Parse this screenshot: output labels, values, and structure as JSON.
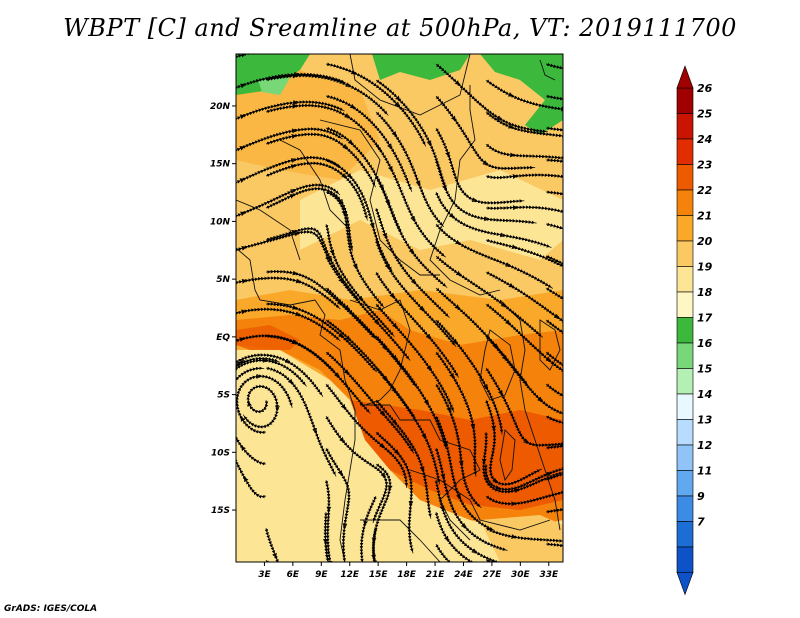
{
  "title": "WBPT [C] and Sreamline at 500hPa, VT: 2019111700",
  "footer": "GrADS: IGES/COLA",
  "map": {
    "lon_range": [
      0,
      34.5
    ],
    "lat_range": [
      -19.5,
      24.5
    ],
    "x_ticks": [
      {
        "value": 3,
        "label": "3E"
      },
      {
        "value": 6,
        "label": "6E"
      },
      {
        "value": 9,
        "label": "9E"
      },
      {
        "value": 12,
        "label": "12E"
      },
      {
        "value": 15,
        "label": "15E"
      },
      {
        "value": 18,
        "label": "18E"
      },
      {
        "value": 21,
        "label": "21E"
      },
      {
        "value": 24,
        "label": "24E"
      },
      {
        "value": 27,
        "label": "27E"
      },
      {
        "value": 30,
        "label": "30E"
      },
      {
        "value": 33,
        "label": "33E"
      }
    ],
    "y_ticks": [
      {
        "value": 20,
        "label": "20N"
      },
      {
        "value": 15,
        "label": "15N"
      },
      {
        "value": 10,
        "label": "10N"
      },
      {
        "value": 5,
        "label": "5N"
      },
      {
        "value": 0,
        "label": "EQ"
      },
      {
        "value": -5,
        "label": "5S"
      },
      {
        "value": -10,
        "label": "10S"
      },
      {
        "value": -15,
        "label": "15S"
      }
    ]
  },
  "colorbar": {
    "labels": [
      "26",
      "25",
      "24",
      "23",
      "22",
      "21",
      "20",
      "19",
      "18",
      "17",
      "16",
      "15",
      "14",
      "13",
      "12",
      "11",
      "9",
      "7"
    ],
    "colors": [
      "#a00000",
      "#c81400",
      "#e12d00",
      "#ee5a00",
      "#f5820a",
      "#f9a82a",
      "#fac963",
      "#fde596",
      "#fef7c4",
      "#3cb83c",
      "#78d878",
      "#b4f0b4",
      "#e8f8ff",
      "#b8dcff",
      "#90c4f8",
      "#60a8f0",
      "#3c8ce6",
      "#1c6ed6",
      "#0e52c8"
    ]
  },
  "colors": {
    "cool_green": "#3cb83c",
    "light_yellow": "#fde596",
    "orange": "#f5820a",
    "deep_orange": "#ee5a00"
  }
}
